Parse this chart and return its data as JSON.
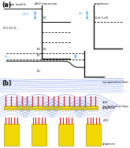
{
  "bg_color": "#ffffff",
  "panel_a_label": "(a)",
  "panel_b_label": "(b)",
  "zno_label": "ZnO nanorods",
  "graphene_label": "graphene",
  "equip_label": "equipotential lines",
  "zno_short": "ZnO",
  "graphene_short": "graphene"
}
